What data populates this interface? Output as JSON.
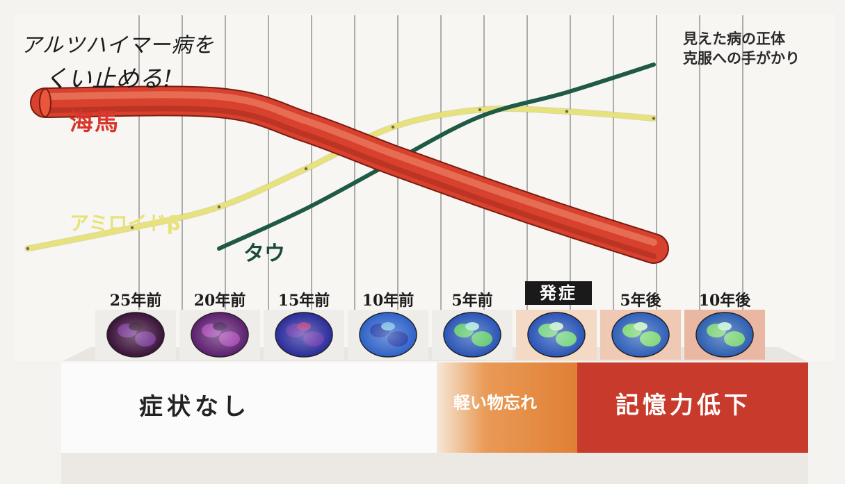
{
  "title": {
    "line1": "アルツハイマー病を",
    "line2": "くい止める!"
  },
  "note": {
    "line1": "見えた病の正体",
    "line2": "克服への手がかり"
  },
  "chart_data": {
    "type": "line",
    "x": [
      "25年前",
      "20年前",
      "15年前",
      "10年前",
      "5年前",
      "発症",
      "5年後",
      "10年後"
    ],
    "highlighted_x": "発症",
    "series": [
      {
        "name": "海馬",
        "color": "#d8412e",
        "values": [
          [
            -25,
            96
          ],
          [
            -15,
            96
          ],
          [
            -10,
            82
          ],
          [
            -5,
            63
          ],
          [
            0,
            45
          ],
          [
            5,
            28
          ],
          [
            10,
            12
          ]
        ]
      },
      {
        "name": "アミロイドβ",
        "color": "#e7e27c",
        "values": [
          [
            -26,
            12
          ],
          [
            -20,
            24
          ],
          [
            -15,
            36
          ],
          [
            -10,
            58
          ],
          [
            -5,
            82
          ],
          [
            0,
            92
          ],
          [
            5,
            91
          ],
          [
            10,
            87
          ]
        ]
      },
      {
        "name": "タウ",
        "color": "#1e5a45",
        "values": [
          [
            -15,
            12
          ],
          [
            -10,
            35
          ],
          [
            -5,
            62
          ],
          [
            0,
            88
          ],
          [
            5,
            102
          ],
          [
            10,
            118
          ]
        ]
      }
    ],
    "stages": [
      {
        "label": "症状なし",
        "color": "#fbfbfb"
      },
      {
        "label": "軽い物忘れ",
        "color": "#e4883e"
      },
      {
        "label": "記憶力低下",
        "color": "#c83a2c"
      }
    ],
    "grid": true,
    "legend": "inline-labels"
  }
}
